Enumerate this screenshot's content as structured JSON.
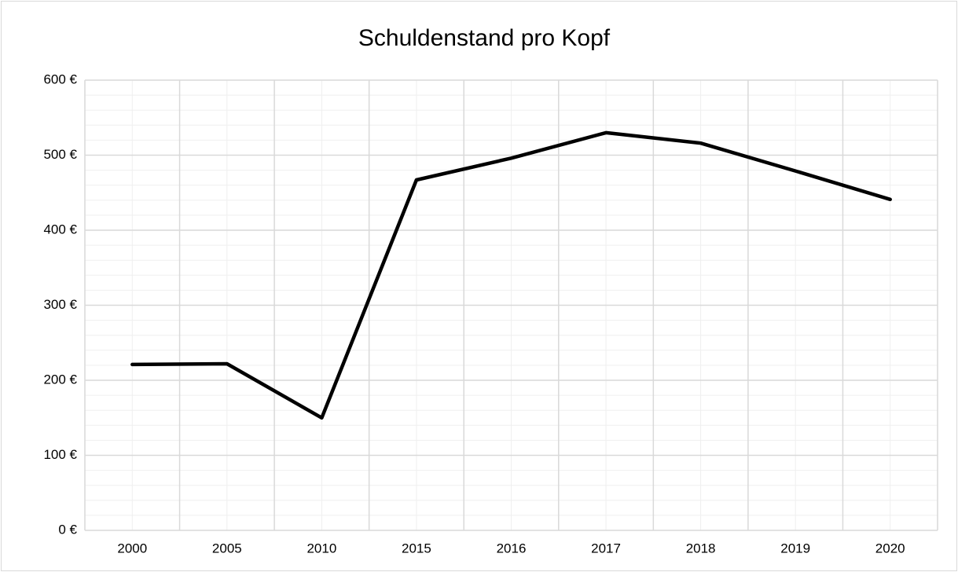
{
  "chart_data": {
    "type": "line",
    "title": "Schuldenstand  pro Kopf",
    "categories": [
      "2000",
      "2005",
      "2010",
      "2015",
      "2016",
      "2017",
      "2018",
      "2019",
      "2020"
    ],
    "series": [
      {
        "name": "Schuldenstand pro Kopf",
        "color": "#000000",
        "values": [
          221,
          222,
          150,
          467,
          496,
          530,
          516,
          479,
          441
        ]
      }
    ],
    "ylim": [
      0,
      600
    ],
    "yticks": [
      {
        "value": 0,
        "label": "0 €"
      },
      {
        "value": 100,
        "label": "100 €"
      },
      {
        "value": 200,
        "label": "200 €"
      },
      {
        "value": 300,
        "label": "300 €"
      },
      {
        "value": 400,
        "label": "400 €"
      },
      {
        "value": 500,
        "label": "500 €"
      },
      {
        "value": 600,
        "label": "600 €"
      }
    ],
    "grid": true
  }
}
